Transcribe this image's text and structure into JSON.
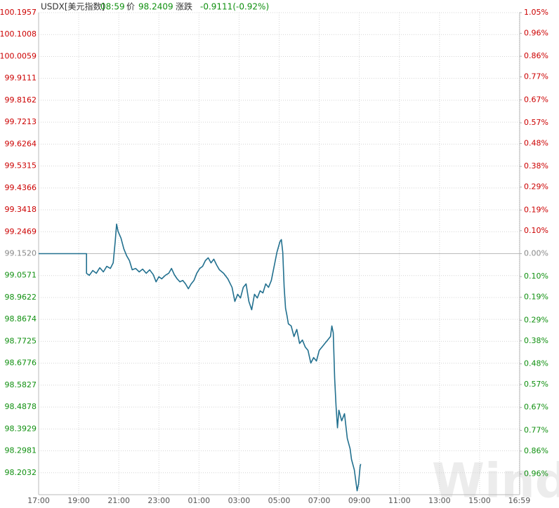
{
  "header": {
    "symbol": "USDX[美元指数]",
    "time": "08:59",
    "price_label": "价",
    "price": "98.2409",
    "change_label": "涨跌",
    "change": "-0.9111(-0.92%)"
  },
  "watermark": "Wind",
  "chart_data": {
    "type": "line",
    "color": "#22708f",
    "up_color": "#cc0000",
    "down_color": "#109010",
    "reference_color": "#888888",
    "reference_line": 99.152,
    "grid": true,
    "xlim": [
      0,
      24
    ],
    "xticks": [
      {
        "value": 0,
        "label": "17:00"
      },
      {
        "value": 2,
        "label": "19:00"
      },
      {
        "value": 4,
        "label": "21:00"
      },
      {
        "value": 6,
        "label": "23:00"
      },
      {
        "value": 8,
        "label": "01:00"
      },
      {
        "value": 10,
        "label": "03:00"
      },
      {
        "value": 12,
        "label": "05:00"
      },
      {
        "value": 14,
        "label": "07:00"
      },
      {
        "value": 16,
        "label": "09:00"
      },
      {
        "value": 18,
        "label": "11:00"
      },
      {
        "value": 20,
        "label": "13:00"
      },
      {
        "value": 22,
        "label": "15:00"
      },
      {
        "value": 23.98,
        "label": "16:59"
      }
    ],
    "ylim": [
      98.1083,
      100.1957
    ],
    "yticks": [
      100.1957,
      100.1008,
      100.0059,
      99.9111,
      99.8162,
      99.7213,
      99.6264,
      99.5315,
      99.4366,
      99.3418,
      99.2469,
      {
        "value": 99.152,
        "label": "99.1520"
      },
      99.0571,
      98.9622,
      98.8674,
      98.7725,
      98.6776,
      98.5827,
      98.4878,
      98.3929,
      98.2981,
      98.2032
    ],
    "y2lim": [
      -1.05,
      1.05
    ],
    "y2ticks": [
      {
        "value": 1.05,
        "label": "1.05%"
      },
      {
        "value": 0.96,
        "label": "0.96%"
      },
      {
        "value": 0.86,
        "label": "0.86%"
      },
      {
        "value": 0.77,
        "label": "0.77%"
      },
      {
        "value": 0.67,
        "label": "0.67%"
      },
      {
        "value": 0.57,
        "label": "0.57%"
      },
      {
        "value": 0.48,
        "label": "0.48%"
      },
      {
        "value": 0.38,
        "label": "0.38%"
      },
      {
        "value": 0.29,
        "label": "0.29%"
      },
      {
        "value": 0.19,
        "label": "0.19%"
      },
      {
        "value": 0.1,
        "label": "0.10%"
      },
      {
        "value": 0,
        "label": "0.00%"
      },
      {
        "value": -0.1,
        "label": "0.10%"
      },
      {
        "value": -0.19,
        "label": "0.19%"
      },
      {
        "value": -0.29,
        "label": "0.29%"
      },
      {
        "value": -0.38,
        "label": "0.38%"
      },
      {
        "value": -0.48,
        "label": "0.48%"
      },
      {
        "value": -0.57,
        "label": "0.57%"
      },
      {
        "value": -0.67,
        "label": "0.67%"
      },
      {
        "value": -0.77,
        "label": "0.77%"
      },
      {
        "value": -0.86,
        "label": "0.86%"
      },
      {
        "value": -0.96,
        "label": "0.96%"
      }
    ],
    "x": [
      0,
      2.39,
      2.39,
      2.53,
      2.7,
      2.88,
      3.05,
      3.23,
      3.4,
      3.58,
      3.72,
      3.82,
      3.89,
      3.96,
      4.11,
      4.25,
      4.39,
      4.53,
      4.67,
      4.84,
      5.02,
      5.19,
      5.37,
      5.54,
      5.72,
      5.86,
      6.0,
      6.14,
      6.32,
      6.49,
      6.63,
      6.77,
      6.91,
      7.05,
      7.19,
      7.33,
      7.47,
      7.61,
      7.75,
      7.89,
      8.04,
      8.18,
      8.32,
      8.46,
      8.6,
      8.74,
      8.88,
      9.02,
      9.23,
      9.44,
      9.65,
      9.79,
      9.93,
      10.07,
      10.21,
      10.35,
      10.49,
      10.63,
      10.77,
      10.91,
      11.05,
      11.19,
      11.33,
      11.47,
      11.61,
      11.75,
      11.89,
      12.04,
      12.11,
      12.18,
      12.25,
      12.32,
      12.39,
      12.46,
      12.6,
      12.74,
      12.88,
      13.02,
      13.16,
      13.3,
      13.44,
      13.58,
      13.72,
      13.86,
      14.0,
      14.14,
      14.28,
      14.42,
      14.56,
      14.63,
      14.7,
      14.77,
      14.84,
      14.91,
      14.98,
      15.12,
      15.26,
      15.4,
      15.54,
      15.61,
      15.75,
      15.89,
      15.96,
      16.04,
      16.07
    ],
    "values": [
      99.152,
      99.152,
      99.067,
      99.058,
      99.079,
      99.067,
      99.091,
      99.073,
      99.097,
      99.088,
      99.112,
      99.204,
      99.28,
      99.249,
      99.219,
      99.173,
      99.143,
      99.122,
      99.082,
      99.088,
      99.073,
      99.085,
      99.067,
      99.082,
      99.061,
      99.03,
      99.052,
      99.043,
      99.058,
      99.067,
      99.088,
      99.061,
      99.043,
      99.03,
      99.036,
      99.021,
      99.0,
      99.021,
      99.036,
      99.067,
      99.088,
      99.097,
      99.122,
      99.134,
      99.112,
      99.128,
      99.103,
      99.082,
      99.067,
      99.043,
      99.006,
      98.945,
      98.976,
      98.96,
      99.006,
      99.021,
      98.945,
      98.909,
      98.976,
      98.96,
      98.991,
      98.982,
      99.021,
      99.006,
      99.036,
      99.097,
      99.158,
      99.204,
      99.213,
      99.158,
      99.006,
      98.915,
      98.884,
      98.848,
      98.839,
      98.793,
      98.824,
      98.763,
      98.778,
      98.748,
      98.733,
      98.678,
      98.702,
      98.687,
      98.733,
      98.748,
      98.763,
      98.778,
      98.793,
      98.839,
      98.809,
      98.611,
      98.49,
      98.398,
      98.474,
      98.428,
      98.459,
      98.352,
      98.307,
      98.261,
      98.216,
      98.125,
      98.155,
      98.231,
      98.2409
    ]
  }
}
